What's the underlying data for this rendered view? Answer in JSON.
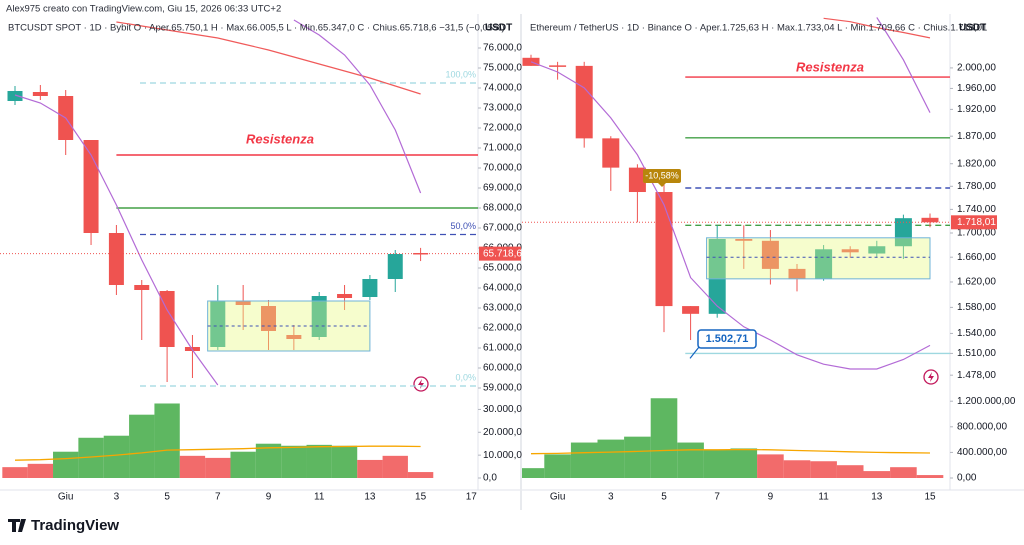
{
  "header": "Alex975 creato con TradingView.com, Giu 15, 2026 06:33 UTC+2",
  "footer": "TradingView",
  "chart_data": [
    {
      "type": "candlestick",
      "title": "BTCUSDT SPOT · 1D · Bybit  O · Aper.65.750,1  H · Max.66.005,5  L · Min.65.347,0  C · Chius.65.718,6  −31,5 (−0,05%)",
      "currency": "USDT",
      "categories": [
        null,
        null,
        "Giu",
        null,
        "3",
        null,
        "5",
        null,
        "7",
        null,
        "9",
        null,
        "11",
        null,
        "13",
        null,
        "15",
        null,
        "17"
      ],
      "open": [
        73350,
        73800,
        73600,
        71400,
        66750,
        64150,
        63850,
        61050,
        61050,
        63350,
        63100,
        61650,
        61550,
        63700,
        63550,
        64450,
        65750.1,
        null,
        null
      ],
      "high": [
        74100,
        74150,
        73900,
        71400,
        67150,
        64400,
        63900,
        61650,
        64150,
        64150,
        63400,
        62150,
        63800,
        64150,
        64650,
        65900,
        66005.5,
        null,
        null
      ],
      "low": [
        73150,
        73400,
        70650,
        66150,
        63650,
        61400,
        59300,
        59500,
        60900,
        61900,
        60900,
        60900,
        61400,
        62900,
        63400,
        63800,
        65347,
        null,
        null
      ],
      "close": [
        73850,
        73600,
        71400,
        66750,
        64150,
        63900,
        61050,
        60850,
        63350,
        63150,
        61850,
        61450,
        63600,
        63500,
        64450,
        65700,
        65718.6,
        null,
        null
      ],
      "volume": [
        4750,
        6200,
        11500,
        17600,
        18500,
        27700,
        32600,
        9700,
        8800,
        11500,
        15000,
        14100,
        14500,
        14100,
        7900,
        9700,
        2600,
        null,
        null
      ],
      "volume_colors": [
        "#f15b5b",
        "#f15b5b",
        "#4caf50",
        "#4caf50",
        "#4caf50",
        "#4caf50",
        "#4caf50",
        "#f15b5b",
        "#f15b5b",
        "#4caf50",
        "#4caf50",
        "#4caf50",
        "#4caf50",
        "#4caf50",
        "#f15b5b",
        "#f15b5b",
        "#f15b5b",
        null,
        null
      ],
      "up_color": "#26a69a",
      "down_color": "#ef5350",
      "log_scale": false,
      "ylim": [
        58500,
        77650
      ],
      "yticks": [
        {
          "value": 59000,
          "label": "59.000,0"
        },
        {
          "value": 60000,
          "label": "60.000,0"
        },
        {
          "value": 61000,
          "label": "61.000,0"
        },
        {
          "value": 62000,
          "label": "62.000,0"
        },
        {
          "value": 63000,
          "label": "63.000,0"
        },
        {
          "value": 64000,
          "label": "64.000,0"
        },
        {
          "value": 65000,
          "label": "65.000,0"
        },
        {
          "value": 66000,
          "label": "66.000,0"
        },
        {
          "value": 67000,
          "label": "67.000,0"
        },
        {
          "value": 68000,
          "label": "68.000,0"
        },
        {
          "value": 69000,
          "label": "69.000,0"
        },
        {
          "value": 70000,
          "label": "70.000,0"
        },
        {
          "value": 71000,
          "label": "71.000,0"
        },
        {
          "value": 72000,
          "label": "72.000,0"
        },
        {
          "value": 73000,
          "label": "73.000,0"
        },
        {
          "value": 74000,
          "label": "74.000,0"
        },
        {
          "value": 75000,
          "label": "75.000,0"
        },
        {
          "value": 76000,
          "label": "76.000,0"
        }
      ],
      "volume_ylim": [
        0,
        35000
      ],
      "volume_ticks": [
        {
          "value": 0,
          "label": "0,0"
        },
        {
          "value": 10000,
          "label": "10.000,0"
        },
        {
          "value": 20000,
          "label": "20.000,0"
        },
        {
          "value": 30000,
          "label": "30.000,0"
        }
      ],
      "lines": [
        {
          "color": "#f05a5a",
          "values": [
            null,
            null,
            null,
            null,
            77300,
            77100,
            76900,
            76700,
            76500,
            76200,
            75900,
            75550,
            75200,
            74850,
            74500,
            74100,
            73700,
            null,
            null
          ]
        },
        {
          "color": "#b36bd6",
          "values": [
            null,
            null,
            null,
            null,
            null,
            null,
            null,
            null,
            null,
            null,
            null,
            77400,
            76650,
            75650,
            74150,
            71900,
            68750,
            null,
            null
          ]
        },
        {
          "color": "#b36bd6",
          "values": [
            73650,
            73250,
            72500,
            70650,
            68150,
            65400,
            62900,
            60900,
            59150,
            null,
            null,
            null,
            null,
            null,
            null,
            null,
            59300,
            null,
            null
          ]
        }
      ],
      "volume_ma": {
        "color": "#f7a600",
        "values": [
          7800,
          8000,
          8500,
          9200,
          10000,
          11000,
          12200,
          12400,
          12600,
          12800,
          13200,
          13400,
          13700,
          13800,
          13900,
          13900,
          13800,
          null,
          null
        ]
      },
      "levels": [
        {
          "value": 70650,
          "color": "#f23645",
          "dashed": false
        },
        {
          "value": 68000,
          "color": "#43a047",
          "dashed": false
        }
      ],
      "fib": [
        {
          "value": 74250,
          "label": "100,0%",
          "color": "#9ed8e0"
        },
        {
          "value": 66675,
          "label": "50,0%",
          "color": "#3f51b5"
        },
        {
          "value": 59100,
          "label": "0,0%",
          "color": "#9ed8e0"
        }
      ],
      "zone": {
        "from": 63350,
        "to": 60850,
        "mid": 62100
      },
      "last_price": {
        "value": 65718.6,
        "label": "65.718,6"
      },
      "annotations": [
        {
          "text": "Resistenza"
        }
      ]
    },
    {
      "type": "candlestick",
      "title": "Ethereum / TetherUS · 1D · Binance  O · Aper.1.725,63  H · Max.1.733,04  L · Min.1.709,66  C · Chius.1.718,01",
      "currency": "USDT",
      "categories": [
        null,
        "Giu",
        null,
        "3",
        null,
        "5",
        null,
        "7",
        null,
        "9",
        null,
        "11",
        null,
        "13",
        null,
        "15"
      ],
      "open": [
        2020,
        2005,
        2004,
        1866,
        1813,
        1770,
        1582,
        1570,
        1690,
        1687,
        1641,
        1625,
        1673,
        1666,
        1678,
        1725.63
      ],
      "high": [
        2026,
        2012,
        2012,
        1870,
        1819,
        1799,
        1582,
        1713,
        1713,
        1705,
        1649,
        1680,
        1678,
        1687,
        1731,
        1733.04
      ],
      "low": [
        2004,
        1977,
        1849,
        1772,
        1718,
        1542,
        1530,
        1564,
        1641,
        1616,
        1605,
        1622,
        1659,
        1659,
        1657,
        1709.66
      ],
      "close": [
        2004,
        2004,
        1866,
        1813,
        1770,
        1582,
        1570,
        1690,
        1687,
        1641,
        1625,
        1673,
        1668,
        1678,
        1725,
        1718.01
      ],
      "volume": [
        154000,
        369000,
        554000,
        600000,
        646000,
        1246000,
        554000,
        446000,
        462000,
        369000,
        277000,
        262000,
        200000,
        108000,
        169000,
        46000
      ],
      "volume_colors": [
        "#4caf50",
        "#4caf50",
        "#4caf50",
        "#4caf50",
        "#4caf50",
        "#4caf50",
        "#4caf50",
        "#4caf50",
        "#4caf50",
        "#f15b5b",
        "#f15b5b",
        "#f15b5b",
        "#f15b5b",
        "#f15b5b",
        "#f15b5b",
        "#f15b5b"
      ],
      "up_color": "#26a69a",
      "down_color": "#ef5350",
      "log_scale": true,
      "ylim": [
        1448,
        2109
      ],
      "yticks": [
        {
          "value": 2000,
          "label": "2.000,00"
        },
        {
          "value": 1960,
          "label": "1.960,00"
        },
        {
          "value": 1920,
          "label": "1.920,00"
        },
        {
          "value": 1870,
          "label": "1.870,00"
        },
        {
          "value": 1820,
          "label": "1.820,00"
        },
        {
          "value": 1780,
          "label": "1.780,00"
        },
        {
          "value": 1740,
          "label": "1.740,00"
        },
        {
          "value": 1700,
          "label": "1.700,00"
        },
        {
          "value": 1660,
          "label": "1.660,00"
        },
        {
          "value": 1620,
          "label": "1.620,00"
        },
        {
          "value": 1580,
          "label": "1.580,00"
        },
        {
          "value": 1540,
          "label": "1.540,00"
        },
        {
          "value": 1510,
          "label": "1.510,00"
        },
        {
          "value": 1478,
          "label": "1.478,00"
        }
      ],
      "volume_ylim": [
        0,
        1250000
      ],
      "volume_ticks": [
        {
          "value": 0,
          "label": "0,00"
        },
        {
          "value": 400000,
          "label": "400.000,00"
        },
        {
          "value": 800000,
          "label": "800.000,00"
        },
        {
          "value": 1200000,
          "label": "1.200.000,00"
        }
      ],
      "lines": [
        {
          "color": "#f05a5a",
          "values": [
            null,
            null,
            null,
            null,
            null,
            null,
            null,
            null,
            null,
            null,
            null,
            2100,
            2093,
            2081,
            2071,
            2060
          ]
        },
        {
          "color": "#b36bd6",
          "values": [
            null,
            null,
            null,
            null,
            null,
            null,
            null,
            null,
            null,
            null,
            null,
            null,
            null,
            2102,
            2016,
            1914
          ]
        },
        {
          "color": "#b36bd6",
          "values": [
            2012,
            1992,
            1961,
            1904,
            1836,
            1748,
            1627,
            1582,
            1550,
            1530,
            1508,
            1494,
            1487,
            1487,
            1501,
            1522
          ]
        }
      ],
      "volume_ma": {
        "color": "#f7a600",
        "values": [
          380000,
          385000,
          395000,
          405000,
          415000,
          430000,
          440000,
          440000,
          445000,
          440000,
          430000,
          420000,
          410000,
          400000,
          395000,
          390000
        ]
      },
      "levels": [
        {
          "value": 1982,
          "color": "#f23645",
          "dashed": false
        },
        {
          "value": 1867,
          "color": "#43a047",
          "dashed": false
        },
        {
          "value": 1777,
          "color": "#3f51b5",
          "dashed": true
        },
        {
          "value": 1713,
          "color": "#43a047",
          "dashed": true
        },
        {
          "value": 1510,
          "color": "#9ed8e0",
          "dashed": false
        }
      ],
      "zone": {
        "from": 1692,
        "to": 1625,
        "mid": 1660
      },
      "last_price": {
        "value": 1718.01,
        "label": "1.718,01"
      },
      "annotations": [
        {
          "text": "Resistenza"
        },
        {
          "text": "-10,58%"
        },
        {
          "text": "1.502,71",
          "value": 1502.71
        }
      ]
    }
  ]
}
